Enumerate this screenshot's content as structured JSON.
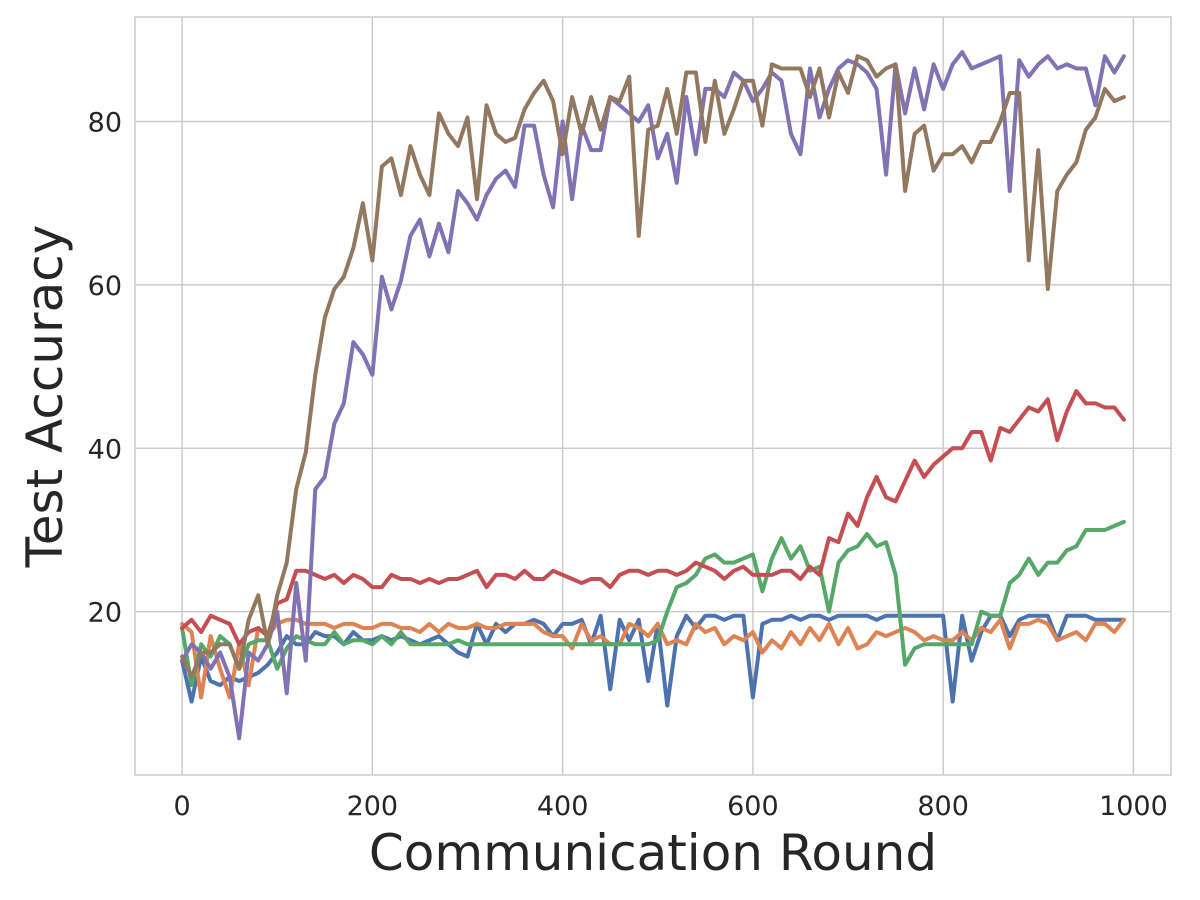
{
  "chart_data": {
    "type": "line",
    "x_label": "Communication Round",
    "y_label": "Test Accuracy",
    "xlim": [
      -49.5,
      1039.5
    ],
    "ylim": [
      0,
      92.8
    ],
    "xticks": [
      0,
      200,
      400,
      600,
      800,
      1000
    ],
    "yticks": [
      20,
      40,
      60,
      80
    ],
    "grid": true,
    "x": [
      0,
      10,
      20,
      30,
      40,
      50,
      60,
      70,
      80,
      90,
      100,
      110,
      120,
      130,
      140,
      150,
      160,
      170,
      180,
      190,
      200,
      210,
      220,
      230,
      240,
      250,
      260,
      270,
      280,
      290,
      300,
      310,
      320,
      330,
      340,
      350,
      360,
      370,
      380,
      390,
      400,
      410,
      420,
      430,
      440,
      450,
      460,
      470,
      480,
      490,
      500,
      510,
      520,
      530,
      540,
      550,
      560,
      570,
      580,
      590,
      600,
      610,
      620,
      630,
      640,
      650,
      660,
      670,
      680,
      690,
      700,
      710,
      720,
      730,
      740,
      750,
      760,
      770,
      780,
      790,
      800,
      810,
      820,
      830,
      840,
      850,
      860,
      870,
      880,
      890,
      900,
      910,
      920,
      930,
      940,
      950,
      960,
      970,
      980,
      990
    ],
    "series": [
      {
        "color": "#4c72b0",
        "values": [
          14,
          9,
          14.5,
          11.5,
          11,
          12,
          11.5,
          12,
          12.5,
          13.5,
          15,
          17,
          16,
          16,
          17.5,
          17,
          17,
          16,
          17.5,
          16.5,
          16.5,
          17,
          16.5,
          17,
          16.5,
          16,
          16.5,
          17,
          16,
          15,
          14.5,
          18.5,
          16,
          18.5,
          17.5,
          18.5,
          18.5,
          19,
          18.5,
          17,
          18.5,
          18.5,
          19,
          16,
          19.5,
          10.5,
          19,
          16.5,
          19,
          11.5,
          18.5,
          8.5,
          17,
          19.5,
          18,
          19.5,
          19.5,
          19,
          19.5,
          19.5,
          9.5,
          18.5,
          19,
          19,
          19.5,
          19,
          19.5,
          19.5,
          19,
          19.5,
          19.5,
          19.5,
          19.5,
          19,
          19.5,
          19.5,
          19.5,
          19.5,
          19.5,
          19.5,
          19.5,
          9,
          19.5,
          14,
          17.5,
          19.5,
          19.5,
          17,
          19,
          19.5,
          19.5,
          19.5,
          16.5,
          19.5,
          19.5,
          19.5,
          19,
          19,
          19,
          19
        ]
      },
      {
        "color": "#dd8452",
        "values": [
          18.5,
          17.5,
          9.5,
          17,
          13,
          9.5,
          16,
          11,
          18,
          17,
          18.5,
          19,
          19,
          18.5,
          18.5,
          18.5,
          18,
          18.5,
          18.5,
          18,
          18,
          18.5,
          18.5,
          18,
          18,
          17.5,
          18.5,
          17.5,
          18.5,
          18,
          18,
          18.5,
          18,
          18,
          18.5,
          18.5,
          18.5,
          18.5,
          17.5,
          17,
          17,
          15.5,
          18.5,
          16.5,
          17,
          16,
          16,
          18.5,
          18,
          17,
          18.5,
          16,
          16.5,
          16,
          18.5,
          17.5,
          18,
          16,
          17,
          16.5,
          17.5,
          15,
          16.5,
          15.5,
          17.5,
          16,
          18,
          16.5,
          18.5,
          16,
          18,
          15.5,
          16,
          17.5,
          17,
          17.5,
          18,
          17.5,
          16.5,
          17,
          16.5,
          16.5,
          17.5,
          16.5,
          18,
          17.5,
          19,
          15.5,
          18.5,
          18.5,
          19,
          18.5,
          16.5,
          17,
          17.5,
          16.5,
          18.5,
          18.5,
          17.5,
          19
        ]
      },
      {
        "color": "#55a868",
        "values": [
          18,
          11,
          16,
          14.5,
          17,
          16,
          13,
          16,
          16.5,
          16.5,
          13,
          15.5,
          17,
          16.5,
          16,
          16,
          17.5,
          16,
          16.5,
          16.5,
          16,
          17,
          16,
          17.5,
          16,
          16,
          16,
          16,
          16,
          16.5,
          16,
          16,
          16,
          16,
          16,
          16,
          16,
          16,
          16,
          16,
          16,
          16,
          16,
          16,
          16,
          16,
          16,
          16,
          16,
          16,
          16.5,
          20,
          23,
          23.5,
          24.5,
          26.5,
          27,
          26,
          26,
          26.5,
          27,
          22.5,
          26.5,
          29,
          26.5,
          28,
          25,
          25.5,
          20,
          26,
          27.5,
          28,
          29.5,
          28,
          28.5,
          24.5,
          13.5,
          15.5,
          16,
          16,
          16,
          16,
          16,
          16,
          20,
          19.5,
          19.5,
          23.5,
          24.5,
          26.5,
          24.5,
          26,
          26,
          27.5,
          28,
          30,
          30,
          30,
          30.5,
          31
        ]
      },
      {
        "color": "#c44e52",
        "values": [
          18,
          19,
          17.5,
          19.5,
          19,
          18.5,
          16,
          17.5,
          18,
          17,
          21,
          21.5,
          25,
          25,
          24.5,
          24,
          24.5,
          23.5,
          24.5,
          24,
          23,
          23,
          24.5,
          24,
          24,
          23.5,
          24,
          23.5,
          24,
          24,
          24.5,
          25,
          23,
          24.5,
          24.5,
          24,
          25,
          24,
          24,
          25,
          24.5,
          24,
          23.5,
          24,
          24,
          23,
          24.5,
          25,
          25,
          24.5,
          25,
          25,
          24.5,
          25,
          26,
          25.5,
          25,
          24,
          25,
          25.5,
          24.5,
          24.5,
          24.5,
          25,
          25,
          24,
          25.5,
          24.5,
          29,
          28.5,
          32,
          30.5,
          34,
          36.5,
          34,
          33.5,
          36,
          38.5,
          36.5,
          38,
          39,
          40,
          40,
          42,
          42,
          38.5,
          42.5,
          42,
          43.5,
          45,
          44.5,
          46,
          41,
          44.5,
          47,
          45.5,
          45.5,
          45,
          45,
          43.5
        ]
      },
      {
        "color": "#8172b3",
        "values": [
          14,
          16,
          15,
          13,
          15,
          12,
          4.5,
          15,
          14,
          16,
          20,
          10,
          23.5,
          14,
          35,
          36.5,
          43,
          45.5,
          53,
          51.5,
          49,
          61,
          57,
          60.5,
          66,
          68,
          63.5,
          67.5,
          64,
          71.5,
          70,
          68,
          71,
          73,
          74,
          72,
          79.5,
          79.5,
          73.5,
          69.5,
          80,
          70.5,
          79.5,
          76.5,
          76.5,
          83,
          82,
          81,
          80,
          82,
          75.5,
          78.5,
          72.5,
          83,
          76,
          84,
          84,
          83,
          86,
          85,
          82.5,
          84,
          86,
          85,
          78.5,
          76,
          86.5,
          80.5,
          84,
          86.5,
          87.5,
          87,
          86,
          84,
          73.5,
          87,
          81,
          86.5,
          81.5,
          87,
          84,
          87,
          88.5,
          86.5,
          87,
          87.5,
          88,
          71.5,
          87.5,
          85.5,
          87,
          88,
          86.5,
          87,
          86.5,
          86.5,
          82,
          88,
          86,
          88
        ]
      },
      {
        "color": "#937860",
        "values": [
          14.5,
          12,
          15,
          15,
          16,
          16,
          13,
          19,
          22,
          16,
          22,
          26,
          35,
          39.5,
          49,
          56,
          59.5,
          61,
          64.5,
          70,
          63,
          74.5,
          75.5,
          71,
          77,
          73.5,
          71,
          81,
          78.5,
          77,
          80.5,
          70.5,
          82,
          78.5,
          77.5,
          78,
          81.5,
          83.5,
          85,
          82.5,
          76,
          83,
          78.5,
          83,
          79,
          83,
          82.5,
          85.5,
          66,
          79,
          79.5,
          84,
          78.5,
          86,
          86,
          77.5,
          85,
          78.5,
          81.5,
          85,
          85,
          79.5,
          87,
          86.5,
          86.5,
          86.5,
          83,
          86.5,
          80.5,
          86,
          83.5,
          88,
          87.5,
          85.5,
          86.5,
          87,
          71.5,
          78.5,
          79.5,
          74,
          76,
          76,
          77,
          75,
          77.5,
          77.5,
          80,
          83.5,
          83.5,
          63,
          76.5,
          59.5,
          71.5,
          73.5,
          75,
          79,
          80.5,
          84,
          82.5,
          83
        ]
      }
    ]
  }
}
